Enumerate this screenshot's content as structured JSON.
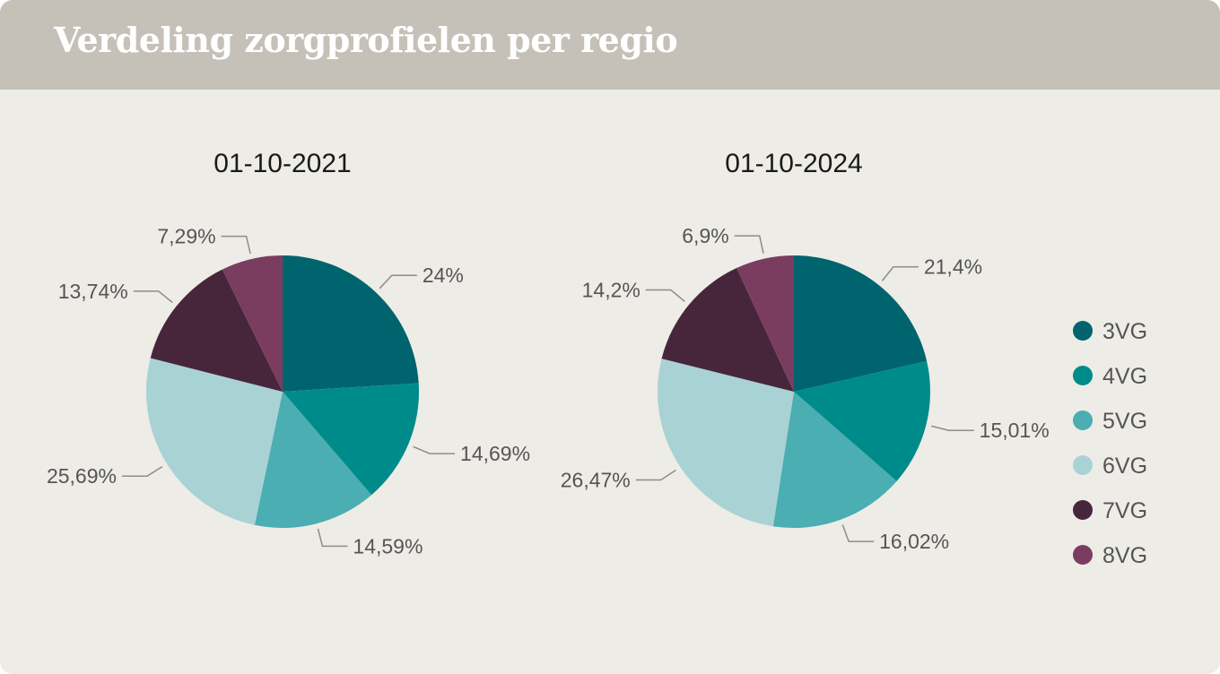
{
  "header": {
    "title": "Verdeling zorgprofielen per regio"
  },
  "colors": {
    "3VG": "#00646e",
    "4VG": "#008b8b",
    "5VG": "#4aaeb2",
    "6VG": "#a9d2d5",
    "7VG": "#47263b",
    "8VG": "#7a3d60"
  },
  "chart_data": [
    {
      "type": "pie",
      "title": "01-10-2021",
      "categories": [
        "3VG",
        "4VG",
        "5VG",
        "6VG",
        "7VG",
        "8VG"
      ],
      "values": [
        24,
        14.69,
        14.59,
        25.69,
        13.74,
        7.29
      ],
      "labels": [
        "24%",
        "14,69%",
        "14,59%",
        "25,69%",
        "13,74%",
        "7,29%"
      ]
    },
    {
      "type": "pie",
      "title": "01-10-2024",
      "categories": [
        "3VG",
        "4VG",
        "5VG",
        "6VG",
        "7VG",
        "8VG"
      ],
      "values": [
        21.4,
        15.01,
        16.02,
        26.47,
        14.2,
        6.9
      ],
      "labels": [
        "21,4%",
        "15,01%",
        "16,02%",
        "26,47%",
        "14,2%",
        "6,9%"
      ]
    }
  ],
  "legend": {
    "position": "right",
    "items": [
      "3VG",
      "4VG",
      "5VG",
      "6VG",
      "7VG",
      "8VG"
    ]
  }
}
